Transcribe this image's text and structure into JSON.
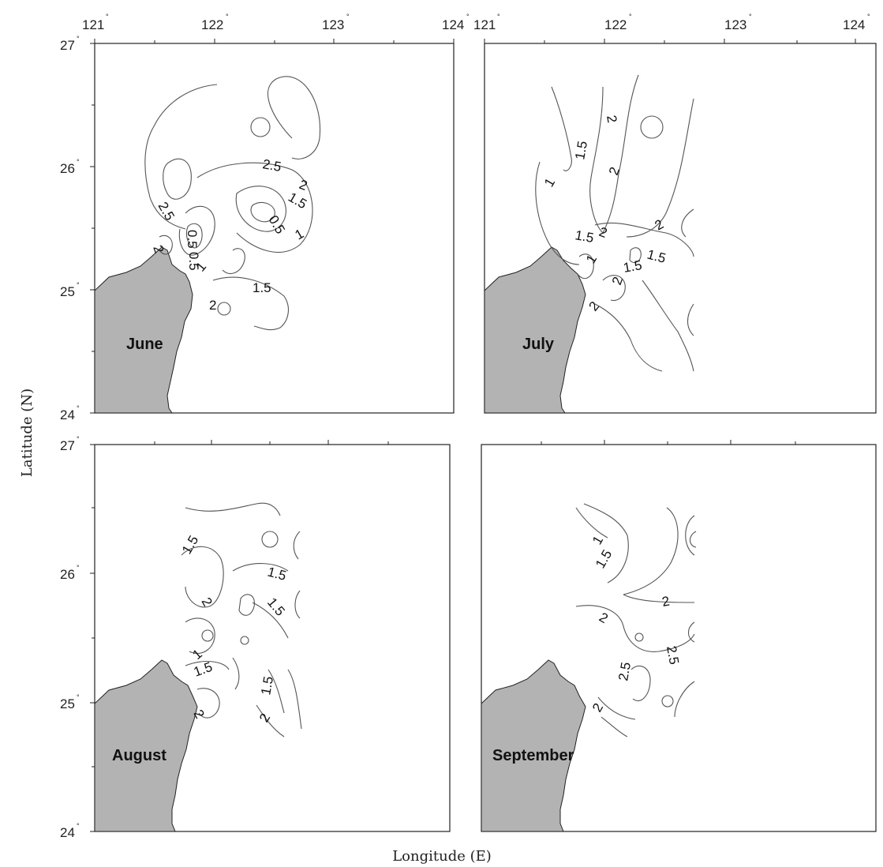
{
  "figure": {
    "x_axis_title": "Longitude (E)",
    "y_axis_title": "Latitude (N)",
    "lon_ticks": [
      "121",
      "122",
      "123",
      "124"
    ],
    "lat_ticks": [
      "27",
      "26",
      "25",
      "24"
    ],
    "degree_symbol": "°"
  },
  "panels": [
    {
      "id": "june",
      "month": "June",
      "contour_labels": [
        "2.5",
        "2",
        "1.5",
        "0.5",
        "1",
        "2.5",
        "2",
        "0.5",
        "0.5",
        "1",
        "1.5",
        "2"
      ]
    },
    {
      "id": "july",
      "month": "July",
      "contour_labels": [
        "2",
        "1.5",
        "2",
        "1",
        "1.5",
        "2",
        "2",
        "1.5",
        "1",
        "1.5",
        "2",
        "2"
      ]
    },
    {
      "id": "august",
      "month": "August",
      "contour_labels": [
        "1.5",
        "1.5",
        "2",
        "1.5",
        "1",
        "1.5",
        "2",
        "1.5",
        "2"
      ]
    },
    {
      "id": "september",
      "month": "September",
      "contour_labels": [
        "1",
        "1.5",
        "2",
        "2",
        "2.5",
        "2.5",
        "2"
      ]
    }
  ]
}
